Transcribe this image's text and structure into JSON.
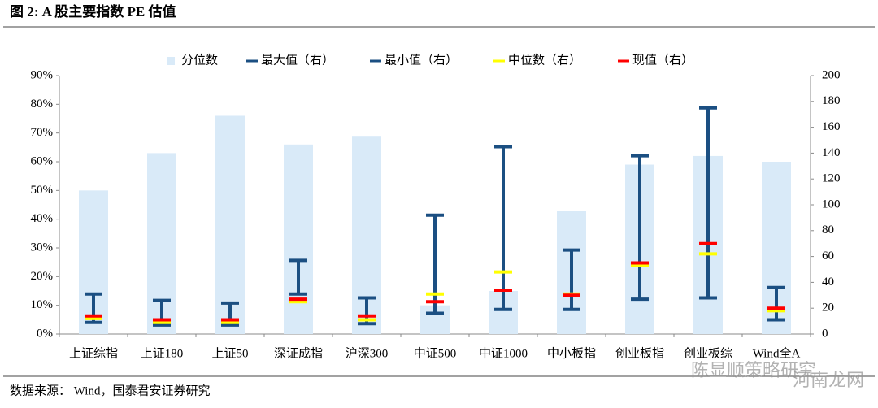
{
  "chart_data": {
    "type": "bar",
    "title": "图 2:  A 股主要指数 PE 估值",
    "categories": [
      "上证综指",
      "上证180",
      "上证50",
      "深证成指",
      "沪深300",
      "中证500",
      "中证1000",
      "中小板指",
      "创业板指",
      "创业板综",
      "Wind全A"
    ],
    "series": [
      {
        "name": "分位数",
        "color": "#d9eaf8",
        "values": [
          50,
          63,
          76,
          66,
          69,
          10,
          15,
          43,
          59,
          62,
          60
        ]
      },
      {
        "name": "最大值（右）",
        "color": "#1b4f82",
        "axis": "y2",
        "values": [
          31,
          26,
          24,
          57,
          28,
          92,
          145,
          65,
          138,
          175,
          36
        ]
      },
      {
        "name": "最小值（右）",
        "color": "#1b4f82",
        "axis": "y2",
        "values": [
          9,
          7,
          7,
          31,
          8,
          16,
          19,
          19,
          27,
          28,
          11
        ]
      },
      {
        "name": "中位数（右）",
        "color": "#ffff00",
        "axis": "y2",
        "values": [
          12,
          9,
          9,
          25,
          11,
          31,
          48,
          31,
          53,
          62,
          18
        ]
      },
      {
        "name": "现值（右）",
        "color": "#ff0000",
        "axis": "y2",
        "values": [
          14,
          11,
          11,
          27,
          14,
          25,
          34,
          30,
          55,
          70,
          20
        ]
      }
    ],
    "ylim": [
      0,
      90
    ],
    "yticks": [
      {
        "value": 0,
        "label": "0%"
      },
      {
        "value": 10,
        "label": "10%"
      },
      {
        "value": 20,
        "label": "20%"
      },
      {
        "value": 30,
        "label": "30%"
      },
      {
        "value": 40,
        "label": "40%"
      },
      {
        "value": 50,
        "label": "50%"
      },
      {
        "value": 60,
        "label": "60%"
      },
      {
        "value": 70,
        "label": "70%"
      },
      {
        "value": 80,
        "label": "80%"
      },
      {
        "value": 90,
        "label": "90%"
      }
    ],
    "y2lim": [
      0,
      200
    ],
    "y2ticks": [
      0,
      20,
      40,
      60,
      80,
      100,
      120,
      140,
      160,
      180,
      200
    ],
    "grid": false,
    "legend": "top"
  },
  "source": "数据来源：  Wind，国泰君安证券研究",
  "watermark": [
    "陈显顺策略研究",
    "河南龙网"
  ]
}
